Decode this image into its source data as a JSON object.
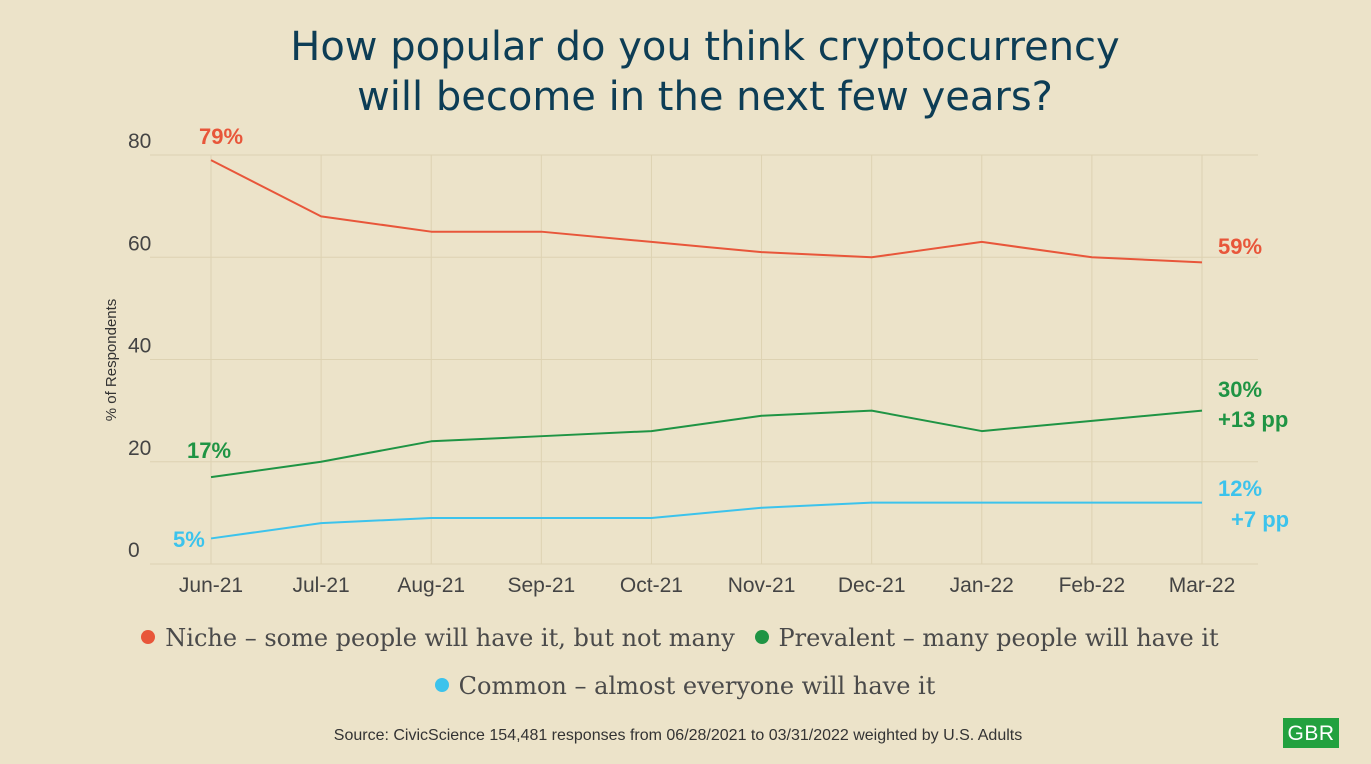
{
  "chart_data": {
    "type": "line",
    "title": "How popular do you think cryptocurrency will become in the next few years?",
    "title_lines": [
      "How popular do you think cryptocurrency",
      "will become in the next few years?"
    ],
    "ylabel": "% of Respondents",
    "xlabel": "",
    "ylim": [
      0,
      80
    ],
    "yticks": [
      0,
      20,
      40,
      60,
      80
    ],
    "grid": true,
    "legend_position": "bottom",
    "categories": [
      "Jun-21",
      "Jul-21",
      "Aug-21",
      "Sep-21",
      "Oct-21",
      "Nov-21",
      "Dec-21",
      "Jan-22",
      "Feb-22",
      "Mar-22"
    ],
    "series": [
      {
        "name": "Niche – some people will have it, but not many",
        "color": "#e8563a",
        "values": [
          79,
          68,
          65,
          65,
          63,
          61,
          60,
          63,
          60,
          59
        ],
        "start_label": "79%",
        "end_label": "59%",
        "change_label": ""
      },
      {
        "name": "Prevalent – many people will have it",
        "color": "#1f9444",
        "values": [
          17,
          20,
          24,
          25,
          26,
          29,
          30,
          26,
          28,
          30
        ],
        "start_label": "17%",
        "end_label": "30%",
        "change_label": "+13 pp"
      },
      {
        "name": "Common – almost everyone will have it",
        "color": "#3cc3ec",
        "values": [
          5,
          8,
          9,
          9,
          9,
          11,
          12,
          12,
          12,
          12
        ],
        "start_label": "5%",
        "end_label": "12%",
        "change_label": "+7 pp"
      }
    ]
  },
  "source": "Source: CivicScience 154,481 responses from 06/28/2021 to 03/31/2022 weighted by U.S. Adults",
  "logo": "GBR"
}
